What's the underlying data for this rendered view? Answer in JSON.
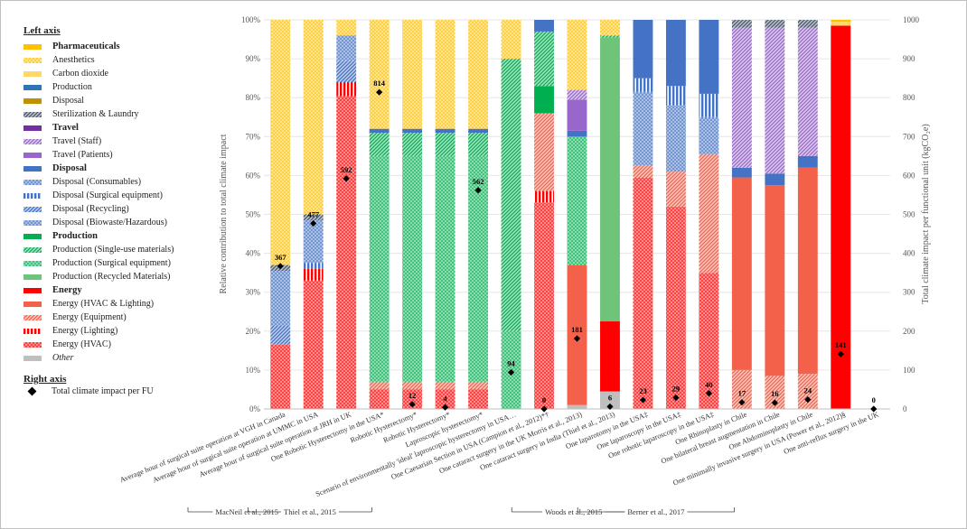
{
  "colors": {
    "pharma": "#FFC000",
    "production": "#4472C4",
    "disposal_brown": "#BF9000",
    "steril": "#44546A",
    "travel": "#7030A0",
    "travel_light": "#9966CC",
    "green": "#00B050",
    "green_light": "#70C47A",
    "red": "#FF0000",
    "red_light": "#F4614A",
    "grey": "#BFBFBF"
  },
  "legend": {
    "left_title": "Left axis",
    "right_title": "Right axis",
    "items": [
      {
        "key": "pharma",
        "label": "Pharmaceuticals",
        "bold": true,
        "color": "#FFC000",
        "pattern": "solid"
      },
      {
        "key": "anesthetics",
        "label": "Anesthetics",
        "color": "#FFC000",
        "pattern": "dots"
      },
      {
        "key": "co2",
        "label": "Carbon dioxide",
        "color": "#FFD966",
        "pattern": "solid"
      },
      {
        "key": "prod_blue",
        "label": "Production",
        "color": "#2E75B6",
        "pattern": "solid"
      },
      {
        "key": "disp_brown",
        "label": "Disposal",
        "color": "#BF9000",
        "pattern": "solid"
      },
      {
        "key": "steril",
        "label": "Sterilization & Laundry",
        "color": "#44546A",
        "pattern": "hatch"
      },
      {
        "key": "travel",
        "label": "Travel",
        "bold": true,
        "color": "#7030A0",
        "pattern": "solid"
      },
      {
        "key": "travel_staff",
        "label": "Travel (Staff)",
        "color": "#9966CC",
        "pattern": "hatch"
      },
      {
        "key": "travel_pat",
        "label": "Travel (Patients)",
        "color": "#9966CC",
        "pattern": "solid"
      },
      {
        "key": "disposal",
        "label": "Disposal",
        "bold": true,
        "color": "#4472C4",
        "pattern": "solid"
      },
      {
        "key": "disp_cons",
        "label": "Disposal (Consumables)",
        "color": "#4472C4",
        "pattern": "dots"
      },
      {
        "key": "disp_surg",
        "label": "Disposal (Surgical equipment)",
        "color": "#4472C4",
        "pattern": "vlines"
      },
      {
        "key": "disp_recy",
        "label": "Disposal (Recycling)",
        "color": "#4472C4",
        "pattern": "hatch"
      },
      {
        "key": "disp_bio",
        "label": "Disposal (Biowaste/Hazardous)",
        "color": "#4472C4",
        "pattern": "dots"
      },
      {
        "key": "production",
        "label": "Production",
        "bold": true,
        "color": "#00B050",
        "pattern": "solid"
      },
      {
        "key": "prod_single",
        "label": "Production (Single-use materials)",
        "color": "#00B050",
        "pattern": "hatch"
      },
      {
        "key": "prod_surg",
        "label": "Production (Surgical equipment)",
        "color": "#00B050",
        "pattern": "dots"
      },
      {
        "key": "prod_recy",
        "label": "Production (Recycled Materials)",
        "color": "#70C47A",
        "pattern": "solid"
      },
      {
        "key": "energy",
        "label": "Energy",
        "bold": true,
        "color": "#FF0000",
        "pattern": "solid"
      },
      {
        "key": "en_hvacl",
        "label": "Energy (HVAC & Lighting)",
        "color": "#F4614A",
        "pattern": "solid"
      },
      {
        "key": "en_equip",
        "label": "Energy (Equipment)",
        "color": "#F4614A",
        "pattern": "hatch"
      },
      {
        "key": "en_light",
        "label": "Energy (Lighting)",
        "color": "#FF0000",
        "pattern": "vlines"
      },
      {
        "key": "en_hvac",
        "label": "Energy (HVAC)",
        "color": "#FF0000",
        "pattern": "dots"
      },
      {
        "key": "other",
        "label": "Other",
        "italic": true,
        "color": "#BFBFBF",
        "pattern": "solid"
      }
    ],
    "right_item": "Total climate impact per FU"
  },
  "chart_data": {
    "type": "bar",
    "stacked": true,
    "ylabel": "Relative contribution  to total climate impact",
    "y2label": "Total climate impact per functional unit (kgCO₂e)",
    "ylim": [
      0,
      100
    ],
    "y2lim": [
      0,
      1000
    ],
    "yticks": [
      "0%",
      "10%",
      "20%",
      "30%",
      "40%",
      "50%",
      "60%",
      "70%",
      "80%",
      "90%",
      "100%"
    ],
    "y2ticks": [
      "0",
      "100",
      "200",
      "300",
      "400",
      "500",
      "600",
      "700",
      "800",
      "900",
      "1000"
    ],
    "categories": [
      "Average hour of surgical suite operation at VGH in Canada",
      "Average hour of surgical suite operation at UMMC in USA",
      "Average hour of surgical suite operation at JRH in UK",
      "One Robotic Hysterectomy in the USA*",
      "Robotic Hysterectomy*",
      "Robotic Hysterectomy*",
      "Laproscopic hysterectomy*",
      "Scenario of environmentally 'ideal' laproscopic hysterectomy in USA…",
      "One Caesarian Section in USA (Campion et al., 2012)*†",
      "One cataract surgery in the UK Morris et al., 2013)",
      "One cataract surgery in India (Thiel et al., 2013)",
      "One laparotomy in the USA‡",
      "One laparoscopy in the USA‡",
      "One robotic laparoscopy in the USA‡",
      "One Rhinoplasty in Chile",
      "One bilateral breast augmentation in Chile",
      "One Abdominoplasty in Chile",
      "One minimally invasive surgery in USA (Power et al., 2012)§",
      "One anti-reflux surgery in the UK"
    ],
    "stacks": [
      [
        {
          "k": "en_hvac",
          "v": 16.5
        },
        {
          "k": "disp_recy",
          "v": 5
        },
        {
          "k": "disp_cons",
          "v": 14
        },
        {
          "k": "steril",
          "v": 1.5
        },
        {
          "k": "anesthetics",
          "v": 63
        }
      ],
      [
        {
          "k": "en_hvac",
          "v": 33
        },
        {
          "k": "en_light",
          "v": 3
        },
        {
          "k": "disp_surg",
          "v": 1.5
        },
        {
          "k": "disp_cons",
          "v": 11
        },
        {
          "k": "steril",
          "v": 1.5
        },
        {
          "k": "anesthetics",
          "v": 50
        }
      ],
      [
        {
          "k": "en_hvac",
          "v": 80.5
        },
        {
          "k": "en_light",
          "v": 3.5
        },
        {
          "k": "disp_recy",
          "v": 5.5
        },
        {
          "k": "disp_cons",
          "v": 6.5
        },
        {
          "k": "anesthetics",
          "v": 4
        }
      ],
      [
        {
          "k": "en_hvac",
          "v": 5
        },
        {
          "k": "en_equip",
          "v": 2
        },
        {
          "k": "prod_surg",
          "v": 58
        },
        {
          "k": "prod_single",
          "v": 6
        },
        {
          "k": "disposal",
          "v": 1
        },
        {
          "k": "anesthetics",
          "v": 28
        }
      ],
      [
        {
          "k": "en_hvac",
          "v": 5
        },
        {
          "k": "en_equip",
          "v": 2
        },
        {
          "k": "prod_surg",
          "v": 58
        },
        {
          "k": "prod_single",
          "v": 6
        },
        {
          "k": "disposal",
          "v": 1
        },
        {
          "k": "anesthetics",
          "v": 28
        }
      ],
      [
        {
          "k": "en_hvac",
          "v": 5
        },
        {
          "k": "en_equip",
          "v": 2
        },
        {
          "k": "prod_surg",
          "v": 58
        },
        {
          "k": "prod_single",
          "v": 6
        },
        {
          "k": "disposal",
          "v": 1
        },
        {
          "k": "anesthetics",
          "v": 28
        }
      ],
      [
        {
          "k": "en_hvac",
          "v": 5
        },
        {
          "k": "en_equip",
          "v": 2
        },
        {
          "k": "prod_surg",
          "v": 58
        },
        {
          "k": "prod_single",
          "v": 6
        },
        {
          "k": "disposal",
          "v": 1
        },
        {
          "k": "anesthetics",
          "v": 28
        }
      ],
      [
        {
          "k": "prod_surg",
          "v": 20
        },
        {
          "k": "prod_single",
          "v": 70
        },
        {
          "k": "anesthetics",
          "v": 10
        }
      ],
      [
        {
          "k": "en_hvac",
          "v": 53
        },
        {
          "k": "en_light",
          "v": 3
        },
        {
          "k": "en_equip",
          "v": 20
        },
        {
          "k": "production",
          "v": 7
        },
        {
          "k": "prod_single",
          "v": 14
        },
        {
          "k": "disposal",
          "v": 3
        }
      ],
      [
        {
          "k": "other",
          "v": 1
        },
        {
          "k": "en_hvacl",
          "v": 36
        },
        {
          "k": "prod_surg",
          "v": 33
        },
        {
          "k": "disposal",
          "v": 1.5
        },
        {
          "k": "travel_pat",
          "v": 8
        },
        {
          "k": "travel_staff",
          "v": 2.5
        },
        {
          "k": "anesthetics",
          "v": 18
        }
      ],
      [
        {
          "k": "other",
          "v": 4.5
        },
        {
          "k": "energy",
          "v": 18
        },
        {
          "k": "prod_recy",
          "v": 73
        },
        {
          "k": "prod_single",
          "v": 0.5
        },
        {
          "k": "anesthetics",
          "v": 4
        }
      ],
      [
        {
          "k": "en_hvac",
          "v": 59.5
        },
        {
          "k": "en_equip",
          "v": 3
        },
        {
          "k": "disp_cons",
          "v": 19
        },
        {
          "k": "disp_surg",
          "v": 3.5
        },
        {
          "k": "disposal",
          "v": 15
        }
      ],
      [
        {
          "k": "en_hvac",
          "v": 52
        },
        {
          "k": "en_equip",
          "v": 9
        },
        {
          "k": "disp_cons",
          "v": 17
        },
        {
          "k": "disp_surg",
          "v": 5
        },
        {
          "k": "disposal",
          "v": 17
        }
      ],
      [
        {
          "k": "en_hvac",
          "v": 35
        },
        {
          "k": "en_equip",
          "v": 30.5
        },
        {
          "k": "disp_cons",
          "v": 9.5
        },
        {
          "k": "disp_surg",
          "v": 6
        },
        {
          "k": "disposal",
          "v": 19
        }
      ],
      [
        {
          "k": "en_equip",
          "v": 10
        },
        {
          "k": "en_hvacl",
          "v": 49.5
        },
        {
          "k": "disposal",
          "v": 2.5
        },
        {
          "k": "travel_staff",
          "v": 36
        },
        {
          "k": "steril",
          "v": 2
        }
      ],
      [
        {
          "k": "en_equip",
          "v": 8.5
        },
        {
          "k": "en_hvacl",
          "v": 49
        },
        {
          "k": "disposal",
          "v": 3
        },
        {
          "k": "travel_staff",
          "v": 37.5
        },
        {
          "k": "steril",
          "v": 2
        }
      ],
      [
        {
          "k": "en_equip",
          "v": 9
        },
        {
          "k": "en_hvacl",
          "v": 53
        },
        {
          "k": "disposal",
          "v": 3
        },
        {
          "k": "travel_staff",
          "v": 33
        },
        {
          "k": "steril",
          "v": 2
        }
      ],
      [
        {
          "k": "energy",
          "v": 98.5
        },
        {
          "k": "co2",
          "v": 1
        },
        {
          "k": "pharma",
          "v": 0.5
        }
      ],
      []
    ],
    "totals": [
      367,
      477,
      592,
      814,
      12,
      4,
      562,
      94,
      0,
      181,
      6,
      23,
      29,
      40,
      17,
      16,
      24,
      141,
      0
    ],
    "total_labels": [
      "367",
      "477",
      "592",
      "814",
      "12",
      "4",
      "562",
      "94",
      "0",
      "181",
      "6",
      "23",
      "29",
      "40",
      "17",
      "16",
      "24",
      "141",
      "0"
    ],
    "groups": [
      {
        "label": "MacNeil et al., 2015",
        "from": 0,
        "to": 0
      },
      {
        "label": "Thiel et al., 2015",
        "from": 1,
        "to": 2
      },
      {
        "label": "Woods et al., 2015",
        "from": 9,
        "to": 10
      },
      {
        "label": "Berner et al., 2017",
        "from": 11,
        "to": 13
      }
    ]
  }
}
